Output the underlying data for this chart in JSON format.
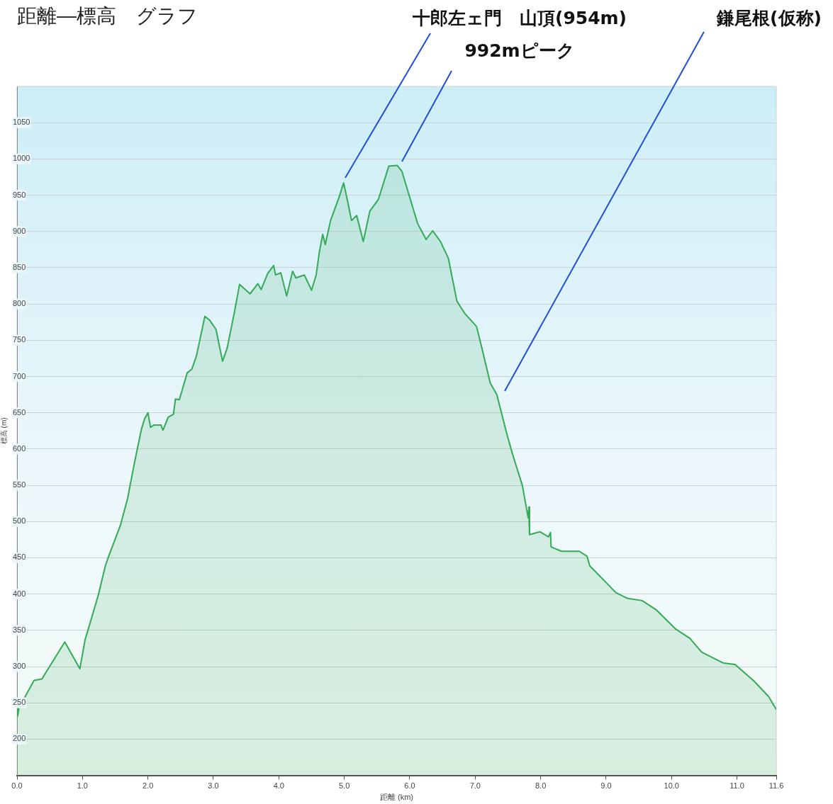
{
  "chart_data": {
    "type": "area",
    "title": "距離―標高　グラフ",
    "xlabel": "距離 (km)",
    "ylabel": "標高 (m)",
    "xlim": [
      0,
      11.6
    ],
    "xticks": [
      {
        "value": 0,
        "label": "0.0"
      },
      {
        "value": 1,
        "label": "1.0"
      },
      {
        "value": 2,
        "label": "2.0"
      },
      {
        "value": 3,
        "label": "3.0"
      },
      {
        "value": 4,
        "label": "4.0"
      },
      {
        "value": 5,
        "label": "5.0"
      },
      {
        "value": 6,
        "label": "6.0"
      },
      {
        "value": 7,
        "label": "7.0"
      },
      {
        "value": 8,
        "label": "8.0"
      },
      {
        "value": 9,
        "label": "9.0"
      },
      {
        "value": 10,
        "label": "10.0"
      },
      {
        "value": 11,
        "label": "11.0"
      },
      {
        "value": 11.6,
        "label": "11.6"
      }
    ],
    "ylim": [
      150,
      1100
    ],
    "yticks": [
      200,
      250,
      300,
      350,
      400,
      450,
      500,
      550,
      600,
      650,
      700,
      750,
      800,
      850,
      900,
      950,
      1000,
      1050
    ],
    "grid": "y",
    "legend": false,
    "annotations": [
      "十郎左ェ門　山頂(954m)",
      "992mピーク",
      "鎌尾根(仮称)"
    ],
    "series": [
      {
        "color": "#33aa55",
        "x": [
          0,
          0.01,
          0.03,
          0.26,
          0.38,
          0.73,
          0.96,
          1.04,
          1.09,
          1.24,
          1.35,
          1.4,
          1.58,
          1.69,
          1.79,
          1.9,
          1.95,
          2.0,
          2.04,
          2.09,
          2.2,
          2.23,
          2.31,
          2.39,
          2.42,
          2.48,
          2.6,
          2.67,
          2.74,
          2.79,
          2.87,
          2.94,
          3.04,
          3.14,
          3.21,
          3.32,
          3.4,
          3.56,
          3.68,
          3.73,
          3.83,
          3.92,
          3.95,
          4.03,
          4.12,
          4.21,
          4.26,
          4.39,
          4.5,
          4.57,
          4.62,
          4.67,
          4.71,
          4.79,
          4.92,
          4.99,
          5.05,
          5.11,
          5.19,
          5.29,
          5.39,
          5.52,
          5.68,
          5.81,
          5.88,
          5.99,
          6.12,
          6.25,
          6.35,
          6.47,
          6.59,
          6.72,
          6.84,
          7.02,
          7.1,
          7.23,
          7.33,
          7.48,
          7.57,
          7.72,
          7.81,
          7.82,
          7.83,
          7.99,
          8.12,
          8.15,
          8.16,
          8.32,
          8.59,
          8.71,
          8.75,
          9.15,
          9.33,
          9.55,
          9.77,
          10.06,
          10.28,
          10.46,
          10.79,
          10.97,
          11.26,
          11.48,
          11.6
        ],
        "values": [
          256,
          232,
          243,
          281,
          283,
          334,
          297,
          337,
          352,
          398,
          439,
          452,
          495,
          532,
          579,
          627,
          642,
          650,
          630,
          633,
          633,
          626,
          644,
          648,
          669,
          668,
          705,
          710,
          728,
          749,
          783,
          778,
          765,
          721,
          739,
          788,
          827,
          814,
          828,
          820,
          842,
          853,
          840,
          843,
          811,
          845,
          836,
          840,
          819,
          840,
          872,
          896,
          882,
          915,
          947,
          967,
          942,
          915,
          922,
          886,
          928,
          944,
          990,
          991,
          983,
          950,
          911,
          889,
          901,
          886,
          863,
          804,
          787,
          769,
          740,
          691,
          675,
          622,
          593,
          550,
          505,
          520,
          482,
          486,
          479,
          485,
          465,
          459,
          459,
          452,
          439,
          402,
          394,
          391,
          378,
          352,
          339,
          320,
          305,
          303,
          280,
          259,
          241
        ]
      }
    ]
  }
}
